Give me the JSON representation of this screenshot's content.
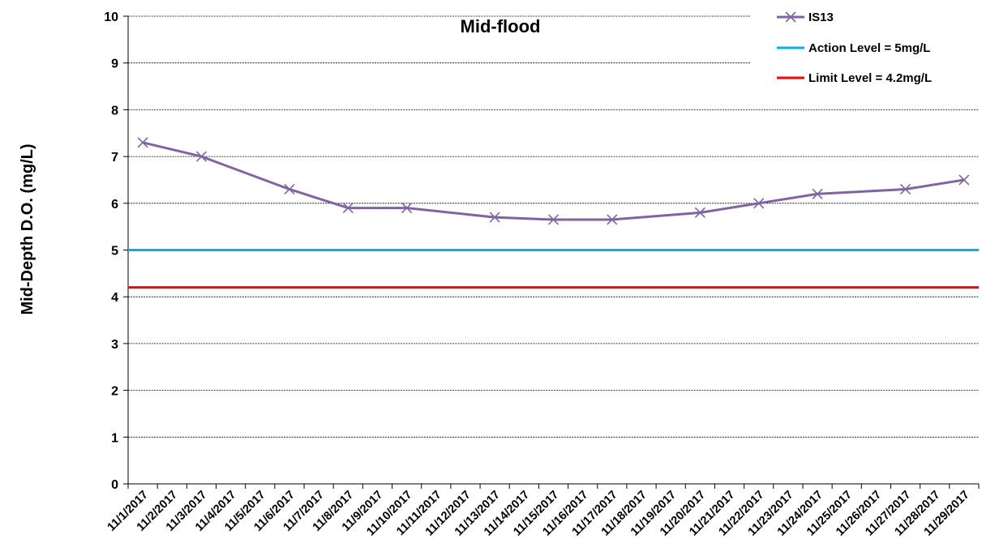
{
  "chart_data": {
    "type": "line",
    "title": "Mid-flood",
    "xlabel": "",
    "ylabel": "Mid-Depth D.O. (mg/L)",
    "ylim": [
      0,
      10
    ],
    "yticks": [
      0,
      1,
      2,
      3,
      4,
      5,
      6,
      7,
      8,
      9,
      10
    ],
    "grid": true,
    "legend_position": "top-right",
    "categories": [
      "11/1/2017",
      "11/2/2017",
      "11/3/2017",
      "11/4/2017",
      "11/5/2017",
      "11/6/2017",
      "11/7/2017",
      "11/8/2017",
      "11/9/2017",
      "11/10/2017",
      "11/11/2017",
      "11/12/2017",
      "11/13/2017",
      "11/14/2017",
      "11/15/2017",
      "11/16/2017",
      "11/17/2017",
      "11/18/2017",
      "11/19/2017",
      "11/20/2017",
      "11/21/2017",
      "11/22/2017",
      "11/23/2017",
      "11/24/2017",
      "11/25/2017",
      "11/26/2017",
      "11/27/2017",
      "11/28/2017",
      "11/29/2017"
    ],
    "series": [
      {
        "name": "IS13",
        "color": "#8064a2",
        "marker": "x",
        "points": [
          {
            "x": "11/1/2017",
            "y": 7.3
          },
          {
            "x": "11/3/2017",
            "y": 7.0
          },
          {
            "x": "11/6/2017",
            "y": 6.3
          },
          {
            "x": "11/8/2017",
            "y": 5.9
          },
          {
            "x": "11/10/2017",
            "y": 5.9
          },
          {
            "x": "11/13/2017",
            "y": 5.7
          },
          {
            "x": "11/15/2017",
            "y": 5.65
          },
          {
            "x": "11/17/2017",
            "y": 5.65
          },
          {
            "x": "11/20/2017",
            "y": 5.8
          },
          {
            "x": "11/22/2017",
            "y": 6.0
          },
          {
            "x": "11/24/2017",
            "y": 6.2
          },
          {
            "x": "11/27/2017",
            "y": 6.3
          },
          {
            "x": "11/29/2017",
            "y": 6.5
          }
        ]
      }
    ],
    "reference_lines": [
      {
        "name": "Action Level = 5mg/L",
        "value": 5,
        "color": "#00b0f0"
      },
      {
        "name": "Limit Level = 4.2mg/L",
        "value": 4.2,
        "color": "#ff0000"
      }
    ]
  }
}
